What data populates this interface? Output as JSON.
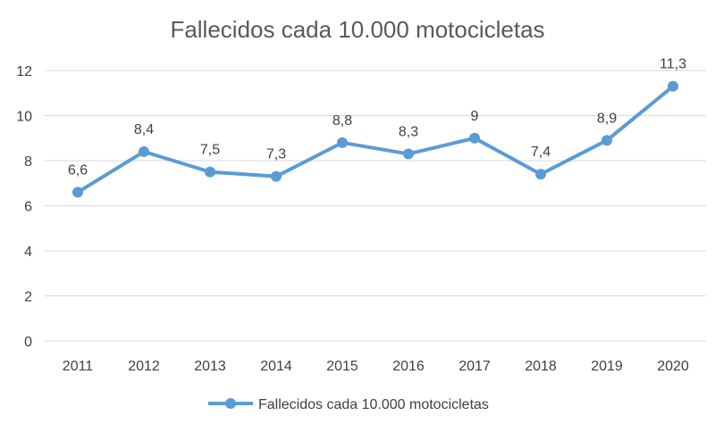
{
  "chart_data": {
    "type": "line",
    "title": "Fallecidos cada 10.000 motocicletas",
    "xlabel": "",
    "ylabel": "",
    "categories": [
      "2011",
      "2012",
      "2013",
      "2014",
      "2015",
      "2016",
      "2017",
      "2018",
      "2019",
      "2020"
    ],
    "series": [
      {
        "name": "Fallecidos cada 10.000 motocicletas",
        "values": [
          6.6,
          8.4,
          7.5,
          7.3,
          8.8,
          8.3,
          9,
          7.4,
          8.9,
          11.3
        ],
        "labels": [
          "6,6",
          "8,4",
          "7,5",
          "7,3",
          "8,8",
          "8,3",
          "9",
          "7,4",
          "8,9",
          "11,3"
        ],
        "color": "#5b9bd5"
      }
    ],
    "ylim": [
      0,
      12
    ],
    "yticks": [
      "0",
      "2",
      "4",
      "6",
      "8",
      "10",
      "12"
    ],
    "grid": true,
    "legend_position": "bottom"
  }
}
